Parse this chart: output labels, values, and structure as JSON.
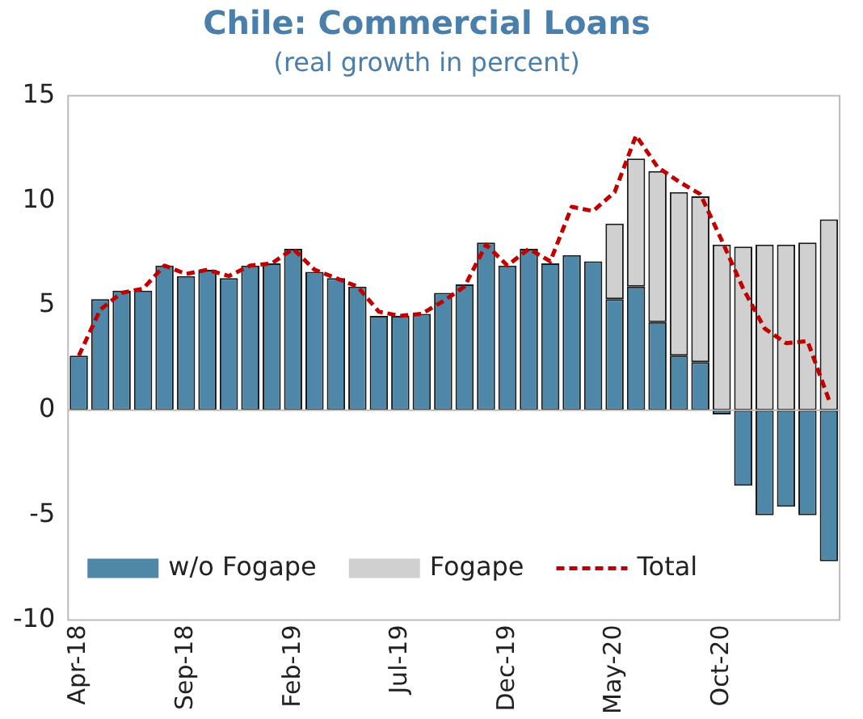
{
  "chart_data": {
    "type": "bar",
    "title": "Chile: Commercial Loans",
    "subtitle": "(real growth in percent)",
    "categories": [
      "Apr-18",
      null,
      null,
      null,
      null,
      "Sep-18",
      null,
      null,
      null,
      null,
      "Feb-19",
      null,
      null,
      null,
      null,
      "Jul-19",
      null,
      null,
      null,
      null,
      "Dec-19",
      null,
      null,
      null,
      null,
      "May-20",
      null,
      null,
      null,
      null,
      "Oct-20",
      null,
      null,
      null,
      null,
      null
    ],
    "stacked": true,
    "series": [
      {
        "name": "w/o Fogape",
        "color": "#4f87a8",
        "values": [
          2.6,
          5.3,
          5.7,
          5.7,
          6.9,
          6.4,
          6.7,
          6.3,
          6.9,
          7.0,
          7.7,
          6.6,
          6.3,
          5.9,
          4.5,
          4.5,
          4.6,
          5.6,
          6.0,
          8.0,
          6.9,
          7.7,
          7.0,
          7.4,
          7.1,
          5.3,
          5.9,
          4.2,
          2.6,
          2.3,
          -0.2,
          -3.6,
          -5.0,
          -4.6,
          -5.0,
          -7.2
        ]
      },
      {
        "name": "Fogape",
        "color": "#d0d0d0",
        "values": [
          null,
          null,
          null,
          null,
          null,
          null,
          null,
          null,
          null,
          null,
          null,
          null,
          null,
          null,
          null,
          null,
          null,
          null,
          null,
          null,
          null,
          null,
          null,
          null,
          null,
          3.6,
          6.1,
          7.2,
          7.8,
          7.9,
          7.9,
          7.8,
          7.9,
          7.9,
          8.0,
          9.1
        ]
      },
      {
        "name": "Total",
        "type": "line",
        "color": "#c00000",
        "line_style": "dashed",
        "values": [
          2.6,
          4.8,
          5.6,
          5.8,
          6.9,
          6.5,
          6.7,
          6.4,
          6.9,
          7.0,
          7.7,
          6.7,
          6.3,
          5.9,
          4.7,
          4.5,
          4.6,
          5.2,
          5.9,
          7.9,
          6.9,
          7.7,
          7.1,
          9.7,
          9.5,
          10.4,
          13.1,
          11.6,
          10.9,
          10.3,
          8.1,
          5.8,
          3.9,
          3.2,
          3.3,
          0.5
        ]
      }
    ],
    "ylim": [
      -10,
      15
    ],
    "yticks": [
      -10,
      -5,
      0,
      5,
      10,
      15
    ],
    "legend": "bottom",
    "marker": "none"
  }
}
